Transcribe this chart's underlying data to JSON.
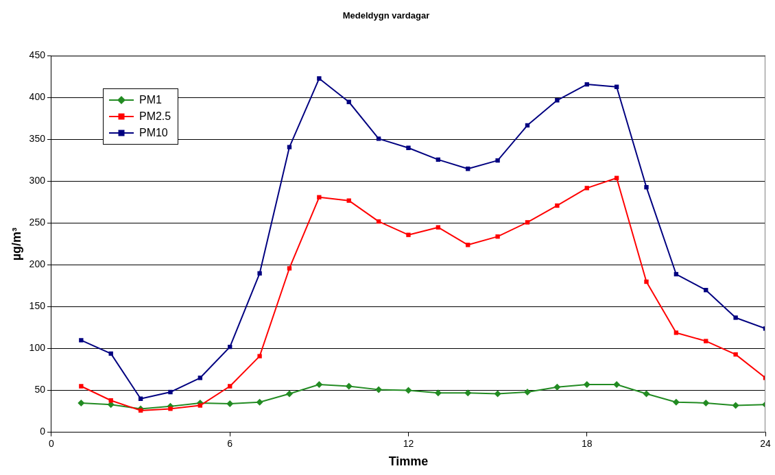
{
  "chart_data": {
    "type": "line",
    "title": "Medeldygn vardagar",
    "xlabel": "Timme",
    "ylabel": "µg/m³",
    "x": [
      1,
      2,
      3,
      4,
      5,
      6,
      7,
      8,
      9,
      10,
      11,
      12,
      13,
      14,
      15,
      16,
      17,
      18,
      19,
      20,
      21,
      22,
      23,
      24
    ],
    "xlim": [
      0,
      24
    ],
    "xticks": [
      0,
      6,
      12,
      18,
      24
    ],
    "ylim": [
      0,
      450
    ],
    "yticks": [
      0,
      50,
      100,
      150,
      200,
      250,
      300,
      350,
      400,
      450
    ],
    "grid": "y",
    "legend": "top left",
    "line_style": "solid",
    "series": [
      {
        "name": "PM1",
        "color": "#228b22",
        "marker": "diamond",
        "values": [
          35,
          33,
          28,
          31,
          35,
          34,
          36,
          46,
          57,
          55,
          51,
          50,
          47,
          47,
          46,
          48,
          54,
          57,
          57,
          46,
          36,
          35,
          32,
          33
        ]
      },
      {
        "name": "PM2.5",
        "color": "#ff0000",
        "marker": "square",
        "values": [
          55,
          38,
          26,
          28,
          32,
          55,
          91,
          196,
          281,
          277,
          252,
          236,
          245,
          224,
          234,
          251,
          271,
          292,
          304,
          180,
          119,
          109,
          93,
          65
        ]
      },
      {
        "name": "PM10",
        "color": "#000080",
        "marker": "square",
        "values": [
          110,
          94,
          40,
          48,
          65,
          102,
          190,
          341,
          423,
          395,
          351,
          340,
          326,
          315,
          325,
          367,
          397,
          416,
          413,
          293,
          189,
          170,
          137,
          124
        ]
      }
    ]
  }
}
